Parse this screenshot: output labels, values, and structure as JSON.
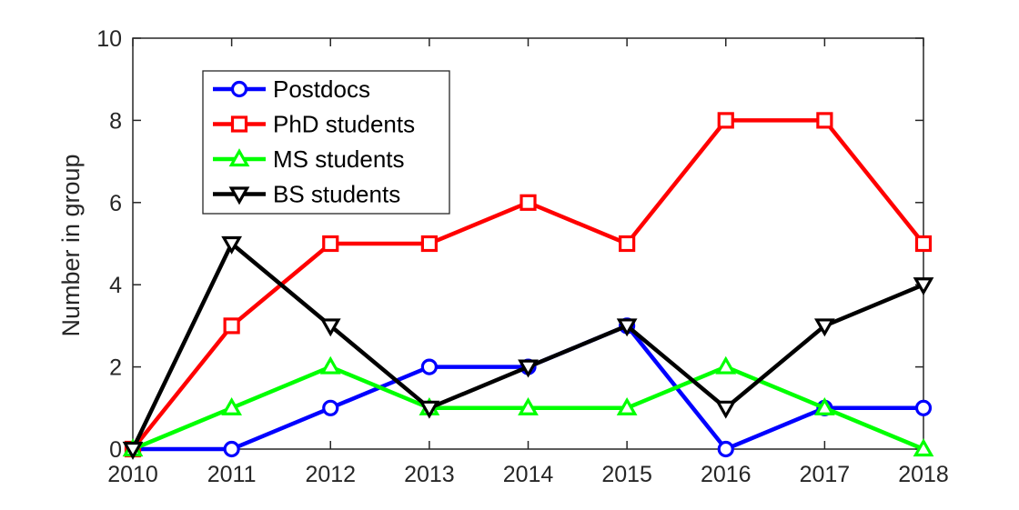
{
  "chart_data": {
    "type": "line",
    "title": "",
    "xlabel": "",
    "ylabel": "Number in group",
    "x": [
      2010,
      2011,
      2012,
      2013,
      2014,
      2015,
      2016,
      2017,
      2018
    ],
    "xlim": [
      2010,
      2018
    ],
    "ylim": [
      0,
      10
    ],
    "xticks": [
      "2010",
      "2011",
      "2012",
      "2013",
      "2014",
      "2015",
      "2016",
      "2017",
      "2018"
    ],
    "yticks": [
      "0",
      "2",
      "4",
      "6",
      "8",
      "10"
    ],
    "grid": false,
    "legend_position": "top-left",
    "series": [
      {
        "name": "Postdocs",
        "color": "#0000ff",
        "marker": "circle",
        "values": [
          0,
          0,
          1,
          2,
          2,
          3,
          0,
          1,
          1
        ]
      },
      {
        "name": "PhD students",
        "color": "#ff0000",
        "marker": "square",
        "values": [
          0,
          3,
          5,
          5,
          6,
          5,
          8,
          8,
          5
        ]
      },
      {
        "name": "MS students",
        "color": "#00ff00",
        "marker": "triangle-up",
        "values": [
          0,
          1,
          2,
          1,
          1,
          1,
          2,
          1,
          0
        ]
      },
      {
        "name": "BS students",
        "color": "#000000",
        "marker": "triangle-down",
        "values": [
          0,
          5,
          3,
          1,
          2,
          3,
          1,
          3,
          4
        ]
      }
    ]
  }
}
